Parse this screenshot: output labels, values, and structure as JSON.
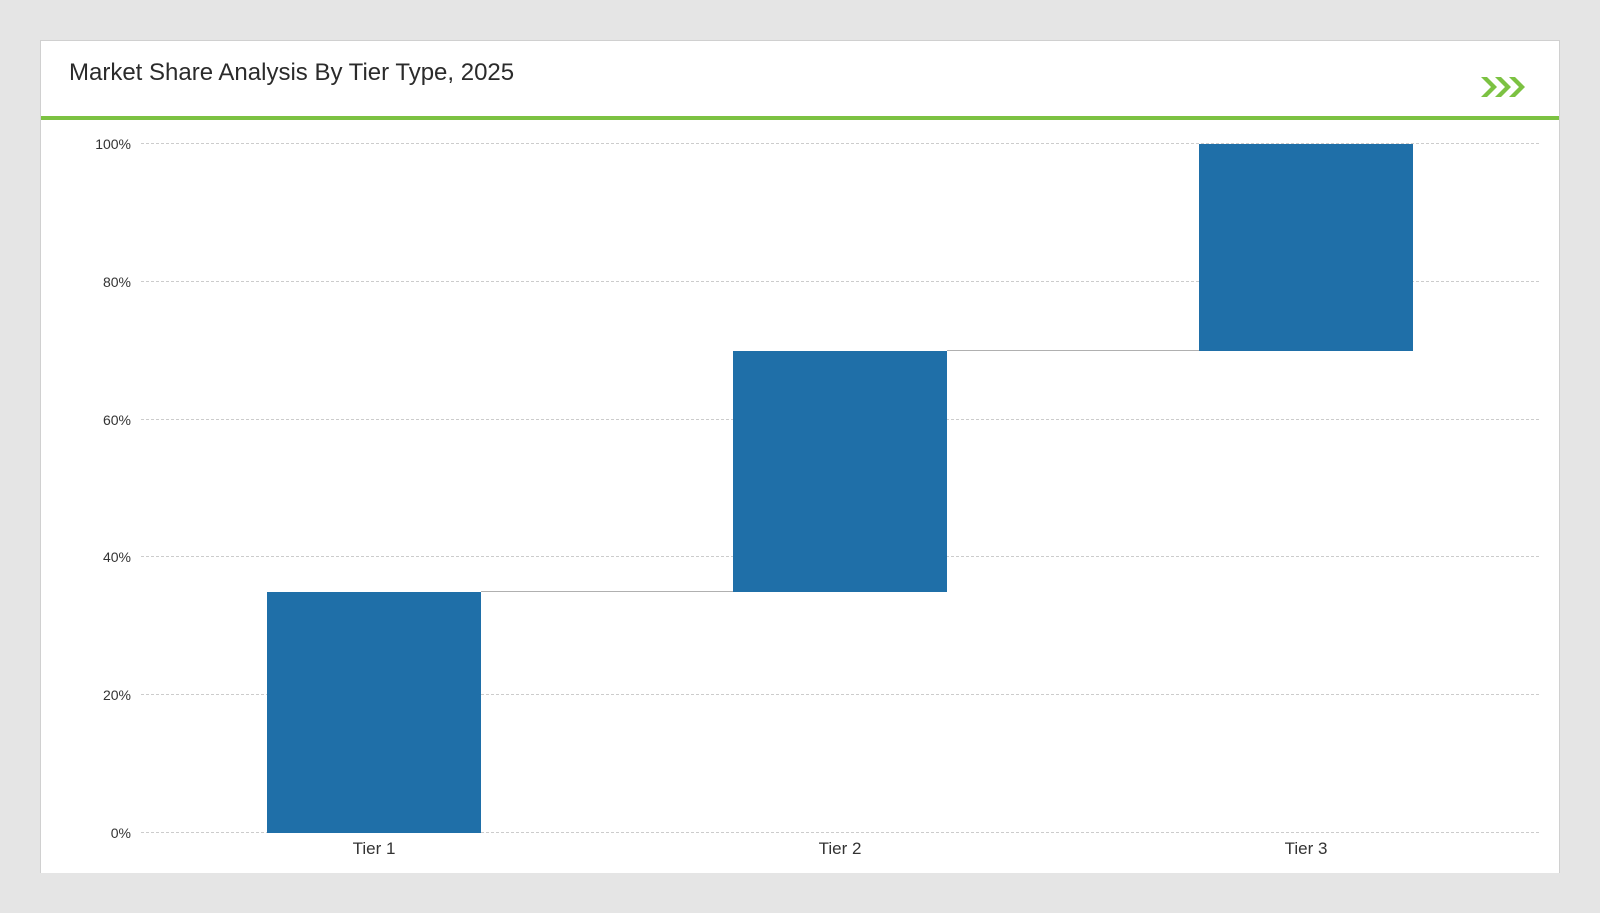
{
  "chart": {
    "type": "waterfall",
    "title": "Market Share Analysis By Tier Type, 2025",
    "title_fontsize": 24,
    "title_color": "#2b2b2b",
    "background_color": "#ffffff",
    "page_background": "#e5e5e5",
    "border_color": "#d0d0d0",
    "header_underline_color": "#7cc242",
    "header_underline_width": 4,
    "chevron_icon_color": "#7cc242",
    "grid_color": "#cccccc",
    "connector_color": "#b0b0b0",
    "bar_color": "#1f6fa8",
    "label_fontsize": 17,
    "ylabel_fontsize": 14,
    "categories": [
      "Tier 1",
      "Tier 2",
      "Tier 3"
    ],
    "series": [
      {
        "label": "Tier 1",
        "start": 0,
        "end": 35
      },
      {
        "label": "Tier 2",
        "start": 35,
        "end": 70
      },
      {
        "label": "Tier 3",
        "start": 70,
        "end": 100
      }
    ],
    "ylim": [
      0,
      100
    ],
    "ytick_step": 20,
    "ytick_labels": [
      "0%",
      "20%",
      "40%",
      "60%",
      "80%",
      "100%"
    ],
    "bar_width_ratio": 0.46,
    "slot_count": 3
  }
}
